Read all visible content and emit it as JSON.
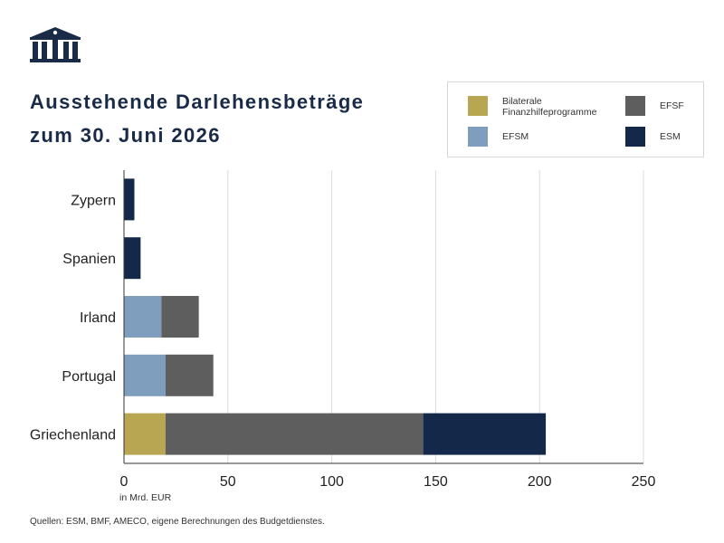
{
  "header": {
    "title_line1": "Ausstehende Darlehensbeträge",
    "title_line2": "zum 30. Juni 2026"
  },
  "logo": {
    "icon": "parliament-building-icon",
    "color": "#1a2b47"
  },
  "legend": {
    "items": [
      {
        "key": "bilateral",
        "lines": [
          "Bilaterale",
          "Finanzhilfeprogramme"
        ],
        "color": "#b8a653"
      },
      {
        "key": "efsf",
        "lines": [
          "EFSF"
        ],
        "color": "#5e5e5e"
      },
      {
        "key": "efsm",
        "lines": [
          "EFSM"
        ],
        "color": "#7f9dbd"
      },
      {
        "key": "esm",
        "lines": [
          "ESM"
        ],
        "color": "#14294a"
      }
    ]
  },
  "chart_data": {
    "type": "bar",
    "orientation": "horizontal",
    "stacked": true,
    "categories": [
      "Zypern",
      "Spanien",
      "Irland",
      "Portugal",
      "Griechenland"
    ],
    "series": [
      {
        "name": "Bilaterale Finanzhilfeprogramme",
        "color": "#b8a653",
        "values": [
          0,
          0,
          0,
          0,
          20
        ]
      },
      {
        "name": "EFSM",
        "color": "#7f9dbd",
        "values": [
          0,
          0,
          18,
          20,
          0
        ]
      },
      {
        "name": "EFSF",
        "color": "#5e5e5e",
        "values": [
          0,
          0,
          18,
          23,
          124
        ]
      },
      {
        "name": "ESM",
        "color": "#14294a",
        "values": [
          5,
          8,
          0,
          0,
          59
        ]
      }
    ],
    "xlabel": "in Mrd. EUR",
    "xlim": [
      0,
      250
    ],
    "xticks": [
      0,
      50,
      100,
      150,
      200,
      250
    ],
    "grid": "vertical",
    "legend_position": "top-right"
  },
  "footer": {
    "source": "Quellen: ESM, BMF, AMECO, eigene Berechnungen des Budgetdienstes."
  }
}
